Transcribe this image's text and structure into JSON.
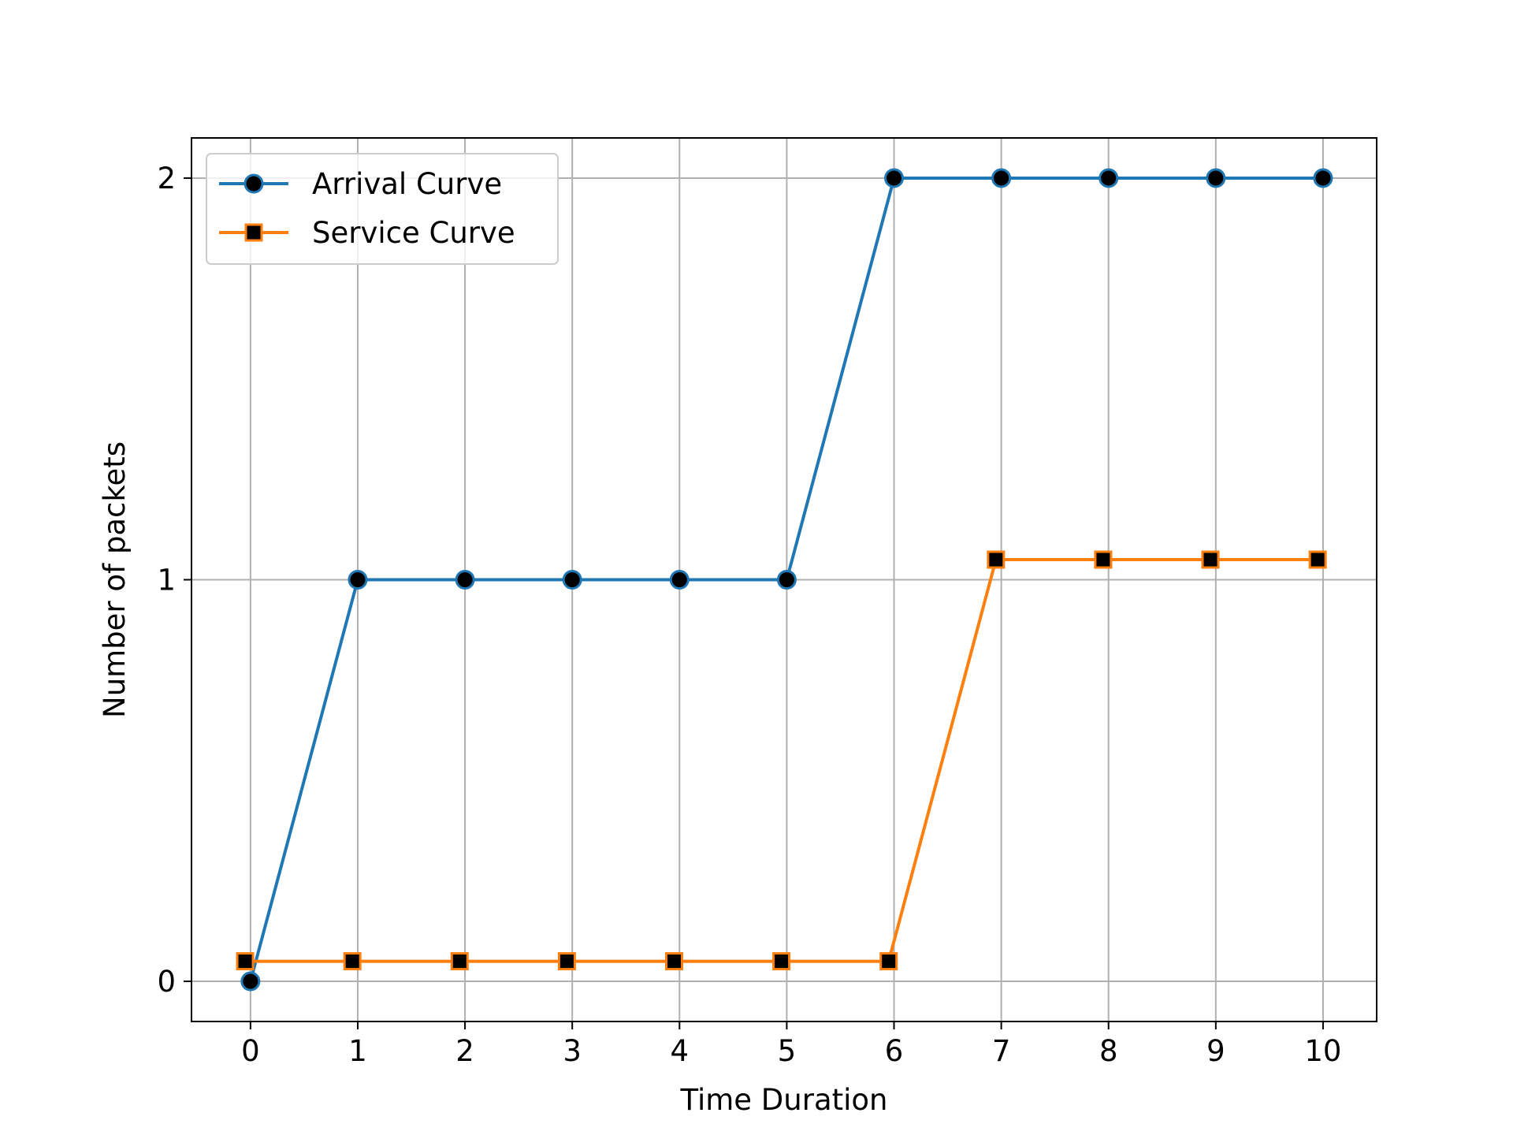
{
  "chart_data": {
    "type": "line",
    "title": "",
    "xlabel": "Time Duration",
    "ylabel": "Number of packets",
    "x": [
      0,
      1,
      2,
      3,
      4,
      5,
      6,
      7,
      8,
      9,
      10
    ],
    "xlim": [
      -0.55,
      10.5
    ],
    "ylim": [
      -0.1,
      2.1
    ],
    "xticks": [
      0,
      1,
      2,
      3,
      4,
      5,
      6,
      7,
      8,
      9,
      10
    ],
    "yticks": [
      0,
      1,
      2
    ],
    "grid": true,
    "legend_position": "top-left",
    "series": [
      {
        "name": "Arrival Curve",
        "color": "#1f77b4",
        "marker": "circle",
        "marker_face": "#000000",
        "x": [
          0,
          1,
          2,
          3,
          4,
          5,
          6,
          7,
          8,
          9,
          10
        ],
        "values": [
          0,
          1,
          1,
          1,
          1,
          1,
          2,
          2,
          2,
          2,
          2
        ]
      },
      {
        "name": "Service Curve",
        "color": "#ff7f0e",
        "marker": "square",
        "marker_face": "#000000",
        "x": [
          -0.05,
          0.95,
          1.95,
          2.95,
          3.95,
          4.95,
          5.95,
          6.95,
          7.95,
          8.95,
          9.95
        ],
        "values": [
          0.05,
          0.05,
          0.05,
          0.05,
          0.05,
          0.05,
          0.05,
          1.05,
          1.05,
          1.05,
          1.05
        ]
      }
    ]
  }
}
